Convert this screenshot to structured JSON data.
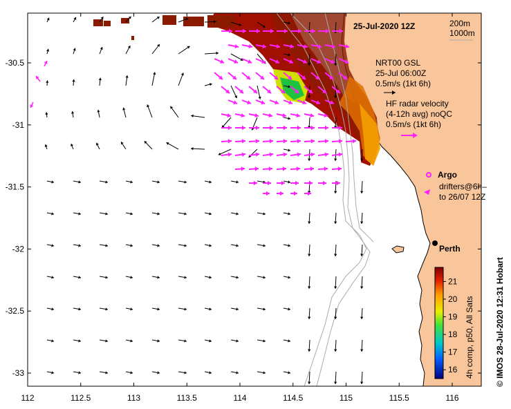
{
  "title": "25-Jul-2020 12Z",
  "depth_legend": [
    "200m",
    "1000m"
  ],
  "nrt_legend": [
    "NRT00 GSL",
    "25-Jul 06:00Z",
    "0.5m/s (1kt 6h)"
  ],
  "hf_legend": [
    "HF radar velocity",
    "(4-12h avg) noQC",
    "0.5m/s (1kt 6h)"
  ],
  "argo_label": "Argo",
  "drifters_label": [
    "drifters@6h–",
    "to 26/07 12Z"
  ],
  "city_label": "Perth",
  "credit": "©  IMOS 28-Jul-2020 12:31 Hobart",
  "colorbar": {
    "label": "4h comp, p50, All Sats",
    "ticks": [
      "21",
      "20",
      "19",
      "18",
      "17",
      "16"
    ],
    "range": [
      15.5,
      21.8
    ]
  },
  "x_ticks": [
    "112",
    "112.5",
    "113",
    "113.5",
    "114",
    "114.5",
    "115",
    "115.5",
    "116"
  ],
  "y_ticks": [
    "-30.5",
    "-31",
    "-31.5",
    "-32",
    "-32.5",
    "-33"
  ],
  "colors": {
    "land": "#f9c59a",
    "hf_arrow": "#ff22ff",
    "current_arrow": "#000000",
    "bathymetry": "#aaaaaa"
  }
}
